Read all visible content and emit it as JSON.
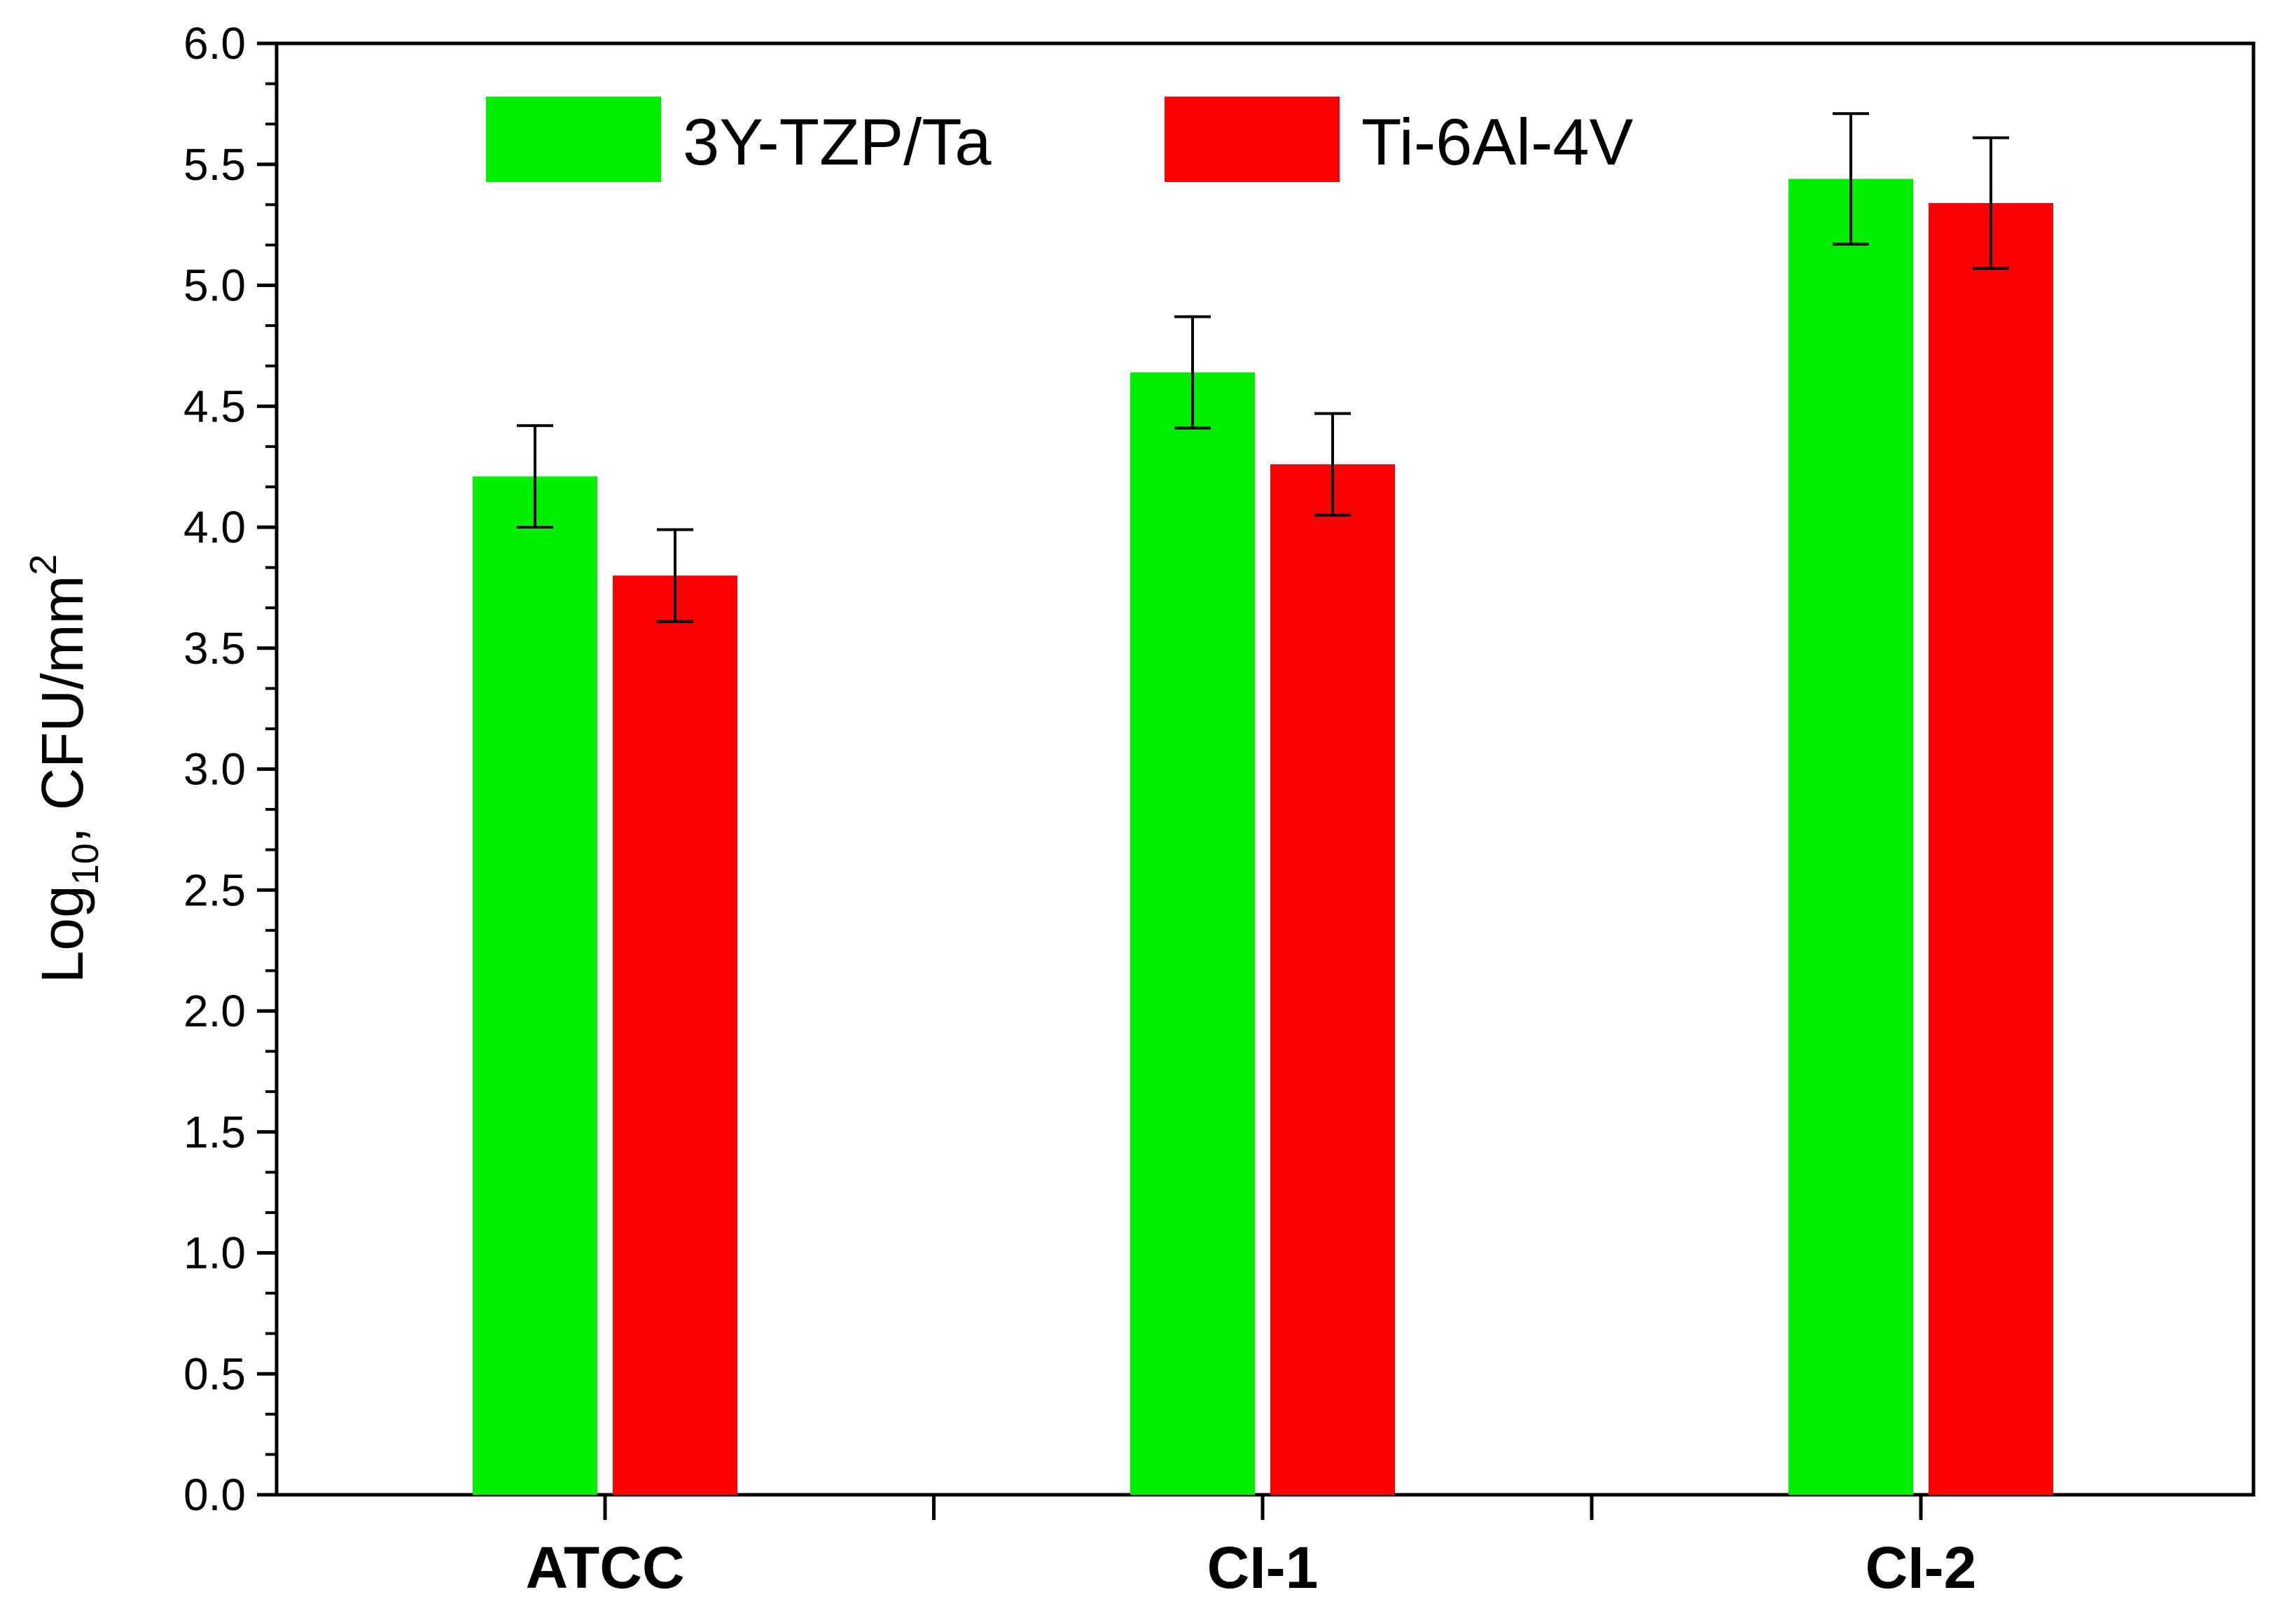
{
  "chart_data": {
    "type": "bar",
    "title": "",
    "xlabel": "",
    "ylabel": {
      "prefix": "Log",
      "subscript": "10",
      "middle": ", CFU/mm",
      "superscript": "2",
      "full": "Log10, CFU/mm2"
    },
    "ylim": [
      0.0,
      6.0
    ],
    "y_ticks": [
      "0.0",
      "0.5",
      "1.0",
      "1.5",
      "2.0",
      "2.5",
      "3.0",
      "3.5",
      "4.0",
      "4.5",
      "5.0",
      "5.5",
      "6.0"
    ],
    "categories": [
      "ATCC",
      "CI-1",
      "CI-2"
    ],
    "series": [
      {
        "name": "3Y-TZP/Ta",
        "color": "#00ee00",
        "values": [
          4.21,
          4.64,
          5.44
        ],
        "errors": [
          0.21,
          0.23,
          0.27
        ]
      },
      {
        "name": "Ti-6Al-4V",
        "color": "#ff0000",
        "values": [
          3.8,
          4.26,
          5.34
        ],
        "errors": [
          0.19,
          0.21,
          0.27
        ]
      }
    ],
    "legend_position": "top",
    "grid": false
  }
}
